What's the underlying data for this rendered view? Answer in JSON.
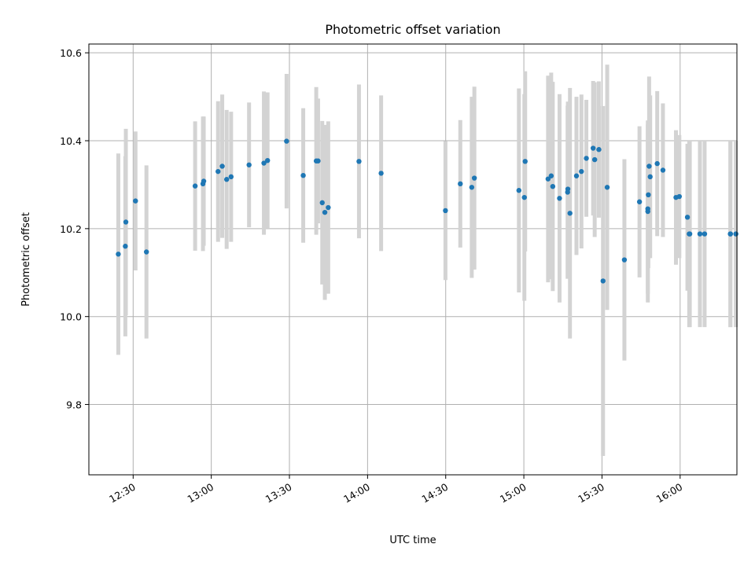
{
  "chart_data": {
    "type": "scatter",
    "title": "Photometric offset variation",
    "xlabel": "UTC time",
    "ylabel": "Photometric offset",
    "x_ticks": [
      "12:30",
      "13:00",
      "13:30",
      "14:00",
      "14:30",
      "15:00",
      "15:30",
      "16:00"
    ],
    "x_tick_minutes": [
      750,
      780,
      810,
      840,
      870,
      900,
      930,
      960
    ],
    "xlim_minutes": [
      733.0,
      981.8
    ],
    "y_ticks": [
      "9.8",
      "10.0",
      "10.2",
      "10.4",
      "10.6"
    ],
    "y_tick_values": [
      9.8,
      10.0,
      10.2,
      10.4,
      10.6
    ],
    "ylim": [
      9.64,
      10.62
    ],
    "grid": true,
    "point_color": "#1f77b4",
    "errorbar_color": "#d3d3d3",
    "series": [
      {
        "x_minutes": [
          744.3,
          747.0,
          747.2,
          750.9,
          755.1,
          773.8,
          776.8,
          777.1,
          782.6,
          784.2,
          785.9,
          787.6,
          794.5,
          800.2,
          801.6,
          808.9,
          815.3,
          820.3,
          821.0,
          822.6,
          823.6,
          824.9,
          836.7,
          845.2,
          869.9,
          875.6,
          880.0,
          881.0,
          898.1,
          900.2,
          900.5,
          909.3,
          910.5,
          911.1,
          913.7,
          916.8,
          916.9,
          917.7,
          920.2,
          922.1,
          924.0,
          926.6,
          927.2,
          928.8,
          930.4,
          932.0,
          938.6,
          944.4,
          947.6,
          947.6,
          947.8,
          948.1,
          948.5,
          951.2,
          953.4,
          958.4,
          959.7,
          962.8,
          963.5,
          963.7,
          967.6,
          969.4,
          979.3,
          979.3,
          981.4
        ],
        "y": [
          10.142,
          10.16,
          10.215,
          10.263,
          10.147,
          10.297,
          10.302,
          10.308,
          10.33,
          10.342,
          10.312,
          10.318,
          10.345,
          10.349,
          10.355,
          10.399,
          10.321,
          10.354,
          10.354,
          10.259,
          10.237,
          10.248,
          10.353,
          10.326,
          10.241,
          10.302,
          10.294,
          10.315,
          10.287,
          10.271,
          10.353,
          10.313,
          10.32,
          10.296,
          10.269,
          10.283,
          10.29,
          10.235,
          10.32,
          10.33,
          10.36,
          10.383,
          10.357,
          10.38,
          10.081,
          10.294,
          10.129,
          10.261,
          10.245,
          10.239,
          10.277,
          10.342,
          10.318,
          10.348,
          10.333,
          10.271,
          10.273,
          10.226,
          10.188,
          10.188,
          10.188,
          10.188,
          10.188,
          10.188,
          10.188
        ],
        "err": [
          0.229,
          0.205,
          0.212,
          0.158,
          0.197,
          0.147,
          0.153,
          0.147,
          0.16,
          0.163,
          0.158,
          0.148,
          0.142,
          0.163,
          0.155,
          0.153,
          0.153,
          0.168,
          0.142,
          0.186,
          0.199,
          0.196,
          0.175,
          0.177,
          0.158,
          0.145,
          0.206,
          0.208,
          0.232,
          0.235,
          0.205,
          0.235,
          0.235,
          0.238,
          0.237,
          0.197,
          0.199,
          0.285,
          0.18,
          0.175,
          0.133,
          0.153,
          0.176,
          0.155,
          0.398,
          0.279,
          0.229,
          0.172,
          0.193,
          0.207,
          0.167,
          0.204,
          0.185,
          0.165,
          0.152,
          0.153,
          0.14,
          0.167,
          0.212,
          0.212,
          0.212,
          0.212,
          0.212,
          0.212,
          0.212
        ]
      }
    ]
  }
}
